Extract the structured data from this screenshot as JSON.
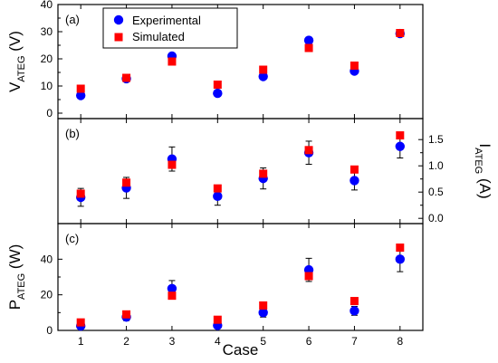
{
  "chart_data": [
    {
      "type": "scatter",
      "panel_label": "(a)",
      "ylabel_main": "V",
      "ylabel_sub": "ATEG",
      "ylabel_unit": " (V)",
      "y_axis_side": "left",
      "ylim": [
        -2,
        40
      ],
      "yticks": [
        0,
        10,
        20,
        30,
        40
      ],
      "legend": {
        "position": "top-left",
        "entries": [
          "Experimental",
          "Simulated"
        ]
      },
      "series": [
        {
          "name": "Experimental",
          "marker": "circle",
          "color": "#0000ff",
          "values": [
            6.5,
            12.7,
            21.0,
            7.3,
            13.5,
            26.8,
            15.5,
            29.3
          ],
          "errors": []
        },
        {
          "name": "Simulated",
          "marker": "square",
          "color": "#ff0000",
          "values": [
            9.0,
            13.0,
            19.0,
            10.5,
            16.0,
            24.0,
            17.5,
            29.5
          ]
        }
      ]
    },
    {
      "type": "scatter",
      "panel_label": "(b)",
      "ylabel_main": "I",
      "ylabel_sub": "ATEG",
      "ylabel_unit": " (A)",
      "y_axis_side": "right",
      "ylim": [
        -0.1,
        1.9
      ],
      "yticks": [
        0.0,
        0.5,
        1.0,
        1.5
      ],
      "ytick_labels": [
        "0.0",
        "0.5",
        "1.0",
        "1.5"
      ],
      "series": [
        {
          "name": "Experimental",
          "marker": "circle",
          "color": "#0000ff",
          "values": [
            0.4,
            0.58,
            1.13,
            0.42,
            0.76,
            1.25,
            0.72,
            1.37
          ],
          "errors": [
            0.17,
            0.2,
            0.23,
            0.17,
            0.2,
            0.22,
            0.18,
            0.22
          ]
        },
        {
          "name": "Simulated",
          "marker": "square",
          "color": "#ff0000",
          "values": [
            0.47,
            0.68,
            1.02,
            0.57,
            0.85,
            1.3,
            0.93,
            1.58
          ]
        }
      ]
    },
    {
      "type": "scatter",
      "panel_label": "(c)",
      "ylabel_main": "P",
      "ylabel_sub": "ATEG",
      "ylabel_unit": " (W)",
      "y_axis_side": "left",
      "ylim": [
        0,
        60
      ],
      "yticks": [
        0,
        20,
        40
      ],
      "xlabel": "Case",
      "x": [
        1,
        2,
        3,
        4,
        5,
        6,
        7,
        8
      ],
      "xtick_labels": [
        "1",
        "2",
        "3",
        "4",
        "5",
        "6",
        "7",
        "8"
      ],
      "series": [
        {
          "name": "Experimental",
          "marker": "circle",
          "color": "#0000ff",
          "values": [
            2.5,
            7.5,
            23.5,
            2.8,
            10.0,
            34.0,
            11.0,
            40.0
          ],
          "errors": [
            1.5,
            2.0,
            4.5,
            1.5,
            2.5,
            6.5,
            2.5,
            7.0
          ]
        },
        {
          "name": "Simulated",
          "marker": "square",
          "color": "#ff0000",
          "values": [
            4.5,
            9.0,
            19.5,
            6.0,
            14.0,
            30.5,
            16.5,
            46.5
          ]
        }
      ]
    }
  ]
}
